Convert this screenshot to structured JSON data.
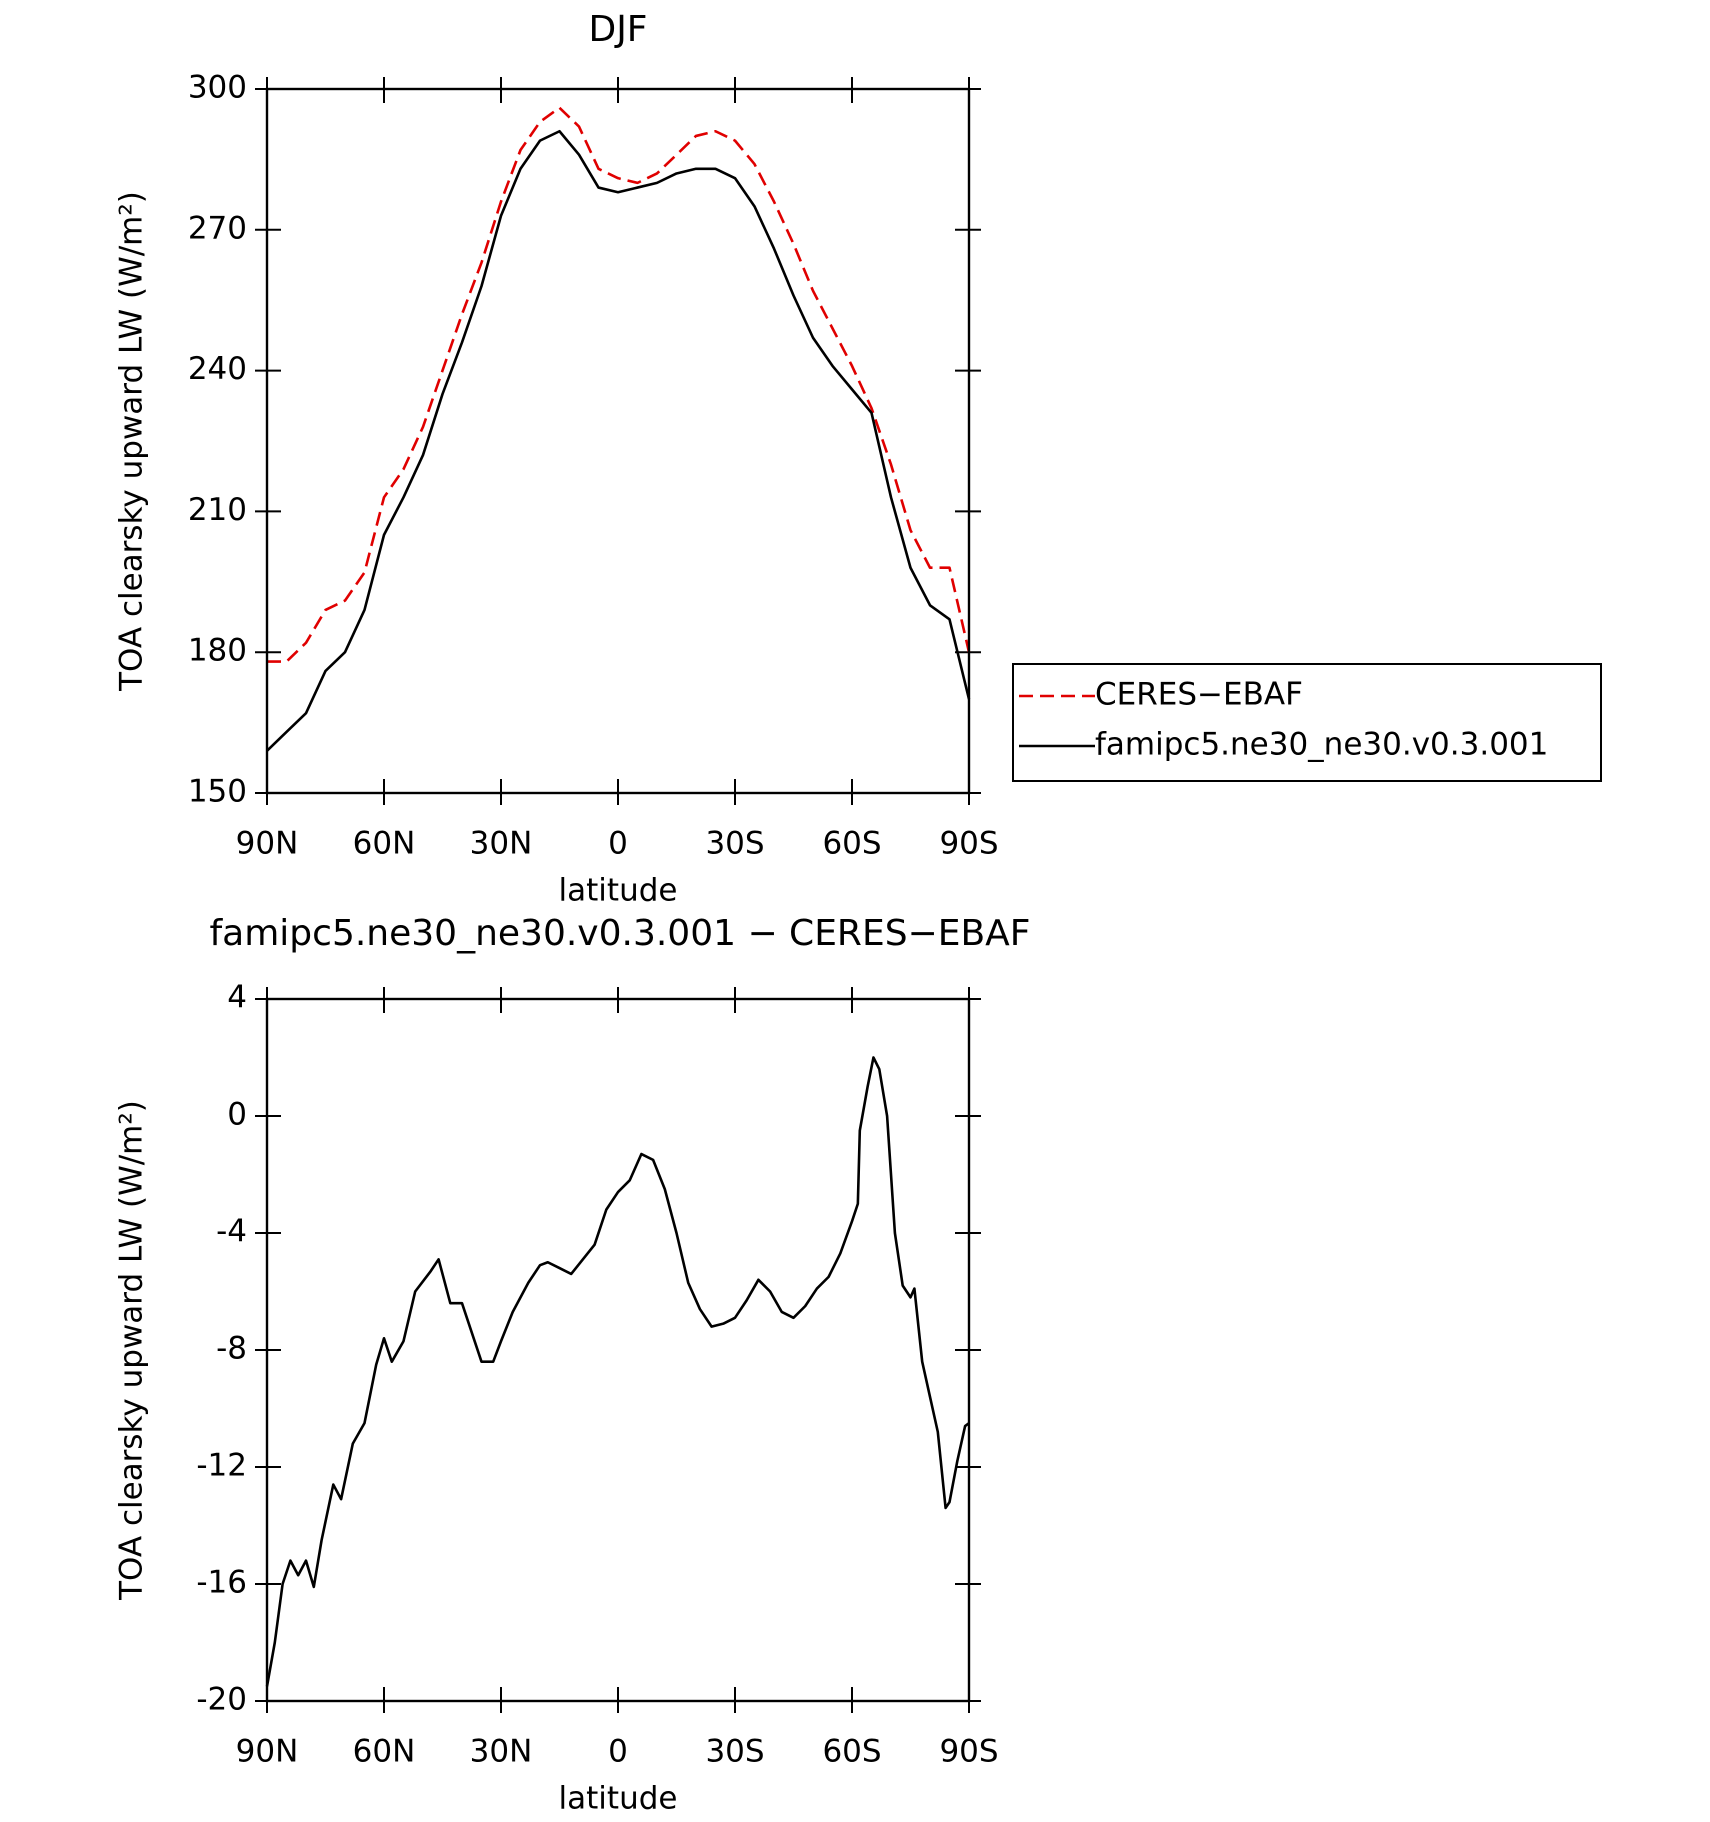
{
  "chart_data": [
    {
      "type": "line",
      "title": "DJF",
      "xlabel": "latitude",
      "ylabel": "TOA clearsky upward LW (W/m²)",
      "x": [
        90,
        85,
        80,
        75,
        70,
        65,
        60,
        55,
        50,
        45,
        40,
        35,
        30,
        25,
        20,
        15,
        10,
        5,
        0,
        -5,
        -10,
        -15,
        -20,
        -25,
        -30,
        -35,
        -40,
        -45,
        -50,
        -55,
        -60,
        -65,
        -70,
        -75,
        -80,
        -85,
        -90
      ],
      "series": [
        {
          "name": "CERES−EBAF",
          "color": "#e00000",
          "dash": true,
          "values": [
            178,
            178,
            182,
            189,
            191,
            197,
            213,
            219,
            228,
            240,
            252,
            263,
            276,
            287,
            293,
            296,
            292,
            283,
            281,
            280,
            282,
            286,
            290,
            291,
            289,
            284,
            276,
            267,
            257,
            249,
            241,
            232,
            220,
            206,
            198,
            198,
            180
          ]
        },
        {
          "name": "famipc5.ne30_ne30.v0.3.001",
          "color": "#000000",
          "dash": false,
          "values": [
            159,
            163,
            167,
            176,
            180,
            189,
            205,
            213,
            222,
            235,
            246,
            258,
            273,
            283,
            289,
            291,
            286,
            279,
            278,
            279,
            280,
            282,
            283,
            283,
            281,
            275,
            266,
            256,
            247,
            241,
            236,
            231,
            213,
            198,
            190,
            187,
            170
          ]
        }
      ],
      "xlim": [
        90,
        -90
      ],
      "xticks": [
        {
          "value": 90,
          "label": "90N"
        },
        {
          "value": 60,
          "label": "60N"
        },
        {
          "value": 30,
          "label": "30N"
        },
        0,
        {
          "value": -30,
          "label": "30S"
        },
        {
          "value": -60,
          "label": "60S"
        },
        {
          "value": -90,
          "label": "90S"
        }
      ],
      "ylim": [
        150,
        300
      ],
      "yticks": [
        150,
        180,
        210,
        240,
        270,
        300
      ],
      "legend": "right"
    },
    {
      "type": "line",
      "title": "famipc5.ne30_ne30.v0.3.001 − CERES−EBAF",
      "xlabel": "latitude",
      "ylabel": "TOA clearsky upward LW (W/m²)",
      "x": [
        90,
        88,
        86,
        84,
        82,
        80,
        78,
        76,
        73,
        71,
        68,
        65,
        62,
        60,
        58,
        55,
        52,
        48,
        46,
        43,
        40,
        37,
        35,
        32,
        30,
        27,
        23,
        20,
        18,
        15,
        12,
        9,
        6,
        3,
        0,
        -3,
        -6,
        -9,
        -12,
        -15,
        -18,
        -21,
        -24,
        -27,
        -30,
        -33,
        -36,
        -39,
        -42,
        -45,
        -48,
        -51,
        -54,
        -57,
        -60,
        -61.5,
        -62,
        -64,
        -65.5,
        -67,
        -69,
        -71,
        -73,
        -75,
        -76,
        -78,
        -80,
        -82,
        -84,
        -85,
        -87,
        -89,
        -90
      ],
      "series": [
        {
          "name": "famipc5.ne30_ne30.v0.3.001 − CERES−EBAF",
          "color": "#000000",
          "dash": false,
          "values": [
            -19.5,
            -18,
            -16,
            -15.2,
            -15.7,
            -15.2,
            -16.1,
            -14.5,
            -12.6,
            -13.1,
            -11.2,
            -10.5,
            -8.5,
            -7.6,
            -8.4,
            -7.7,
            -6,
            -5.3,
            -4.9,
            -6.4,
            -6.4,
            -7.6,
            -8.4,
            -8.4,
            -7.7,
            -6.7,
            -5.7,
            -5.1,
            -5.0,
            -5.2,
            -5.4,
            -4.9,
            -4.4,
            -3.2,
            -2.6,
            -2.2,
            -1.3,
            -1.5,
            -2.5,
            -4,
            -5.7,
            -6.6,
            -7.2,
            -7.1,
            -6.9,
            -6.3,
            -5.6,
            -6.0,
            -6.7,
            -6.9,
            -6.5,
            -5.9,
            -5.5,
            -4.7,
            -3.6,
            -3.0,
            -0.5,
            1.0,
            2.0,
            1.6,
            0,
            -4,
            -5.8,
            -6.2,
            -5.9,
            -8.4,
            -9.6,
            -10.8,
            -13.4,
            -13.2,
            -11.8,
            -10.6,
            -10.5
          ]
        }
      ],
      "xlim": [
        90,
        -90
      ],
      "xticks": [
        {
          "value": 90,
          "label": "90N"
        },
        {
          "value": 60,
          "label": "60N"
        },
        {
          "value": 30,
          "label": "30N"
        },
        0,
        {
          "value": -30,
          "label": "30S"
        },
        {
          "value": -60,
          "label": "60S"
        },
        {
          "value": -90,
          "label": "90S"
        }
      ],
      "ylim": [
        -20,
        4
      ],
      "yticks": [
        -20,
        -16,
        -12,
        -8,
        -4,
        0,
        4
      ]
    }
  ]
}
